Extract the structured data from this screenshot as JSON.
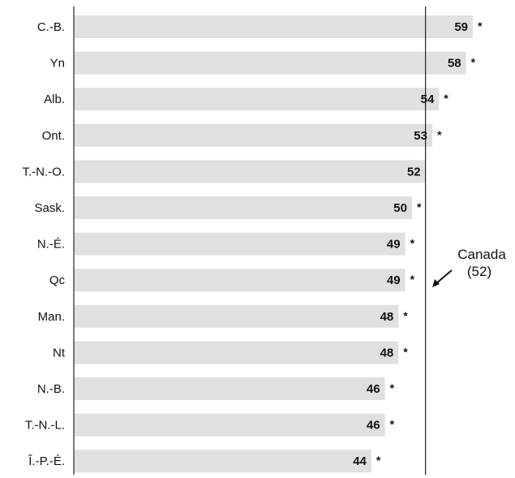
{
  "chart_data": {
    "type": "bar",
    "orientation": "horizontal",
    "categories": [
      "C.-B.",
      "Yn",
      "Alb.",
      "Ont.",
      "T.-N.-O.",
      "Sask.",
      "N.-É.",
      "Qc",
      "Man.",
      "Nt",
      "N.-B.",
      "T.-N.-L.",
      "Î.-P.-É."
    ],
    "values": [
      59,
      58,
      54,
      53,
      52,
      50,
      49,
      49,
      48,
      48,
      46,
      46,
      44
    ],
    "significance_markers": [
      "*",
      "*",
      "*",
      "*",
      "",
      "*",
      "*",
      "*",
      "*",
      "*",
      "*",
      "*",
      "*"
    ],
    "reference_line": {
      "value": 52,
      "label_line1": "Canada",
      "label_line2": "(52)"
    },
    "xlim": [
      0,
      59
    ],
    "bar_color": "#e0e0e0",
    "grid": false
  }
}
